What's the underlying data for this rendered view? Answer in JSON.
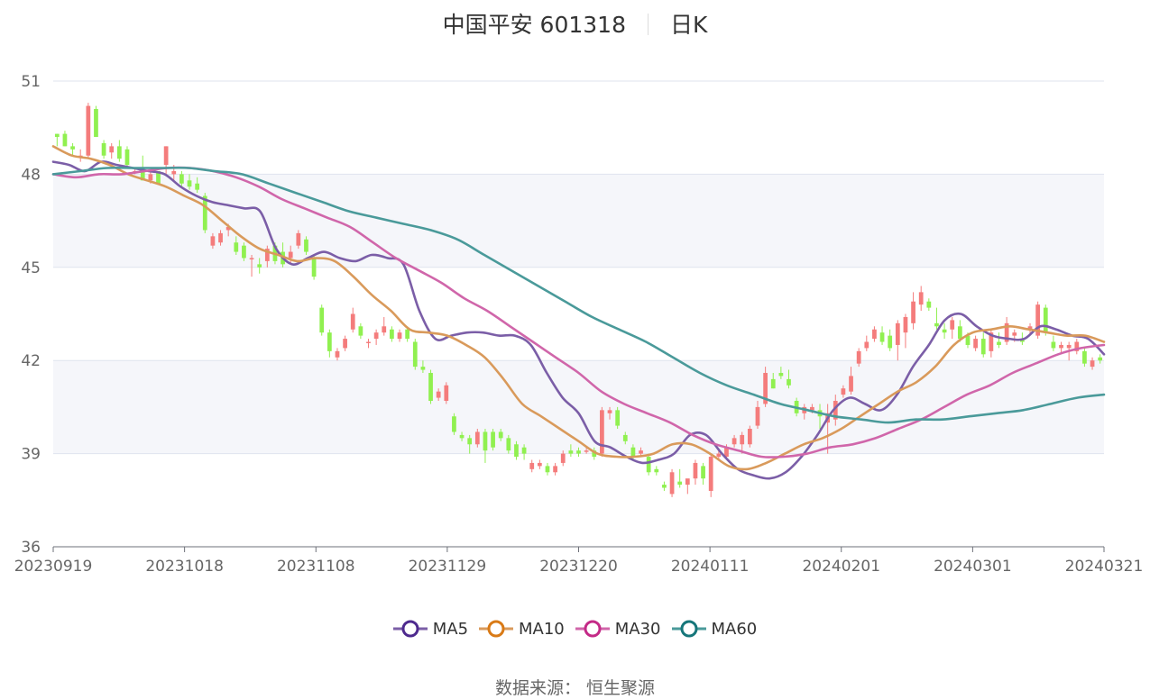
{
  "chart_data": {
    "type": "candlestick",
    "title": "中国平安 601318",
    "period": "日K",
    "ylim": [
      36,
      51
    ],
    "yticks": [
      36,
      39,
      42,
      45,
      48,
      51
    ],
    "xticks": [
      "20230919",
      "20231018",
      "20231108",
      "20231129",
      "20231220",
      "20240111",
      "20240201",
      "20240301",
      "20240321"
    ],
    "up_color": "#f47c7c",
    "down_color": "#90f050",
    "ohlc": [
      [
        49.3,
        49.3,
        48.9,
        49.2
      ],
      [
        49.3,
        49.4,
        48.9,
        48.9
      ],
      [
        48.9,
        49.0,
        48.6,
        48.8
      ],
      [
        48.6,
        48.8,
        48.4,
        48.6
      ],
      [
        48.6,
        50.3,
        48.5,
        50.2
      ],
      [
        50.1,
        50.2,
        49.2,
        49.2
      ],
      [
        49.0,
        49.1,
        48.5,
        48.6
      ],
      [
        48.7,
        49.0,
        48.5,
        48.9
      ],
      [
        48.9,
        49.1,
        48.4,
        48.5
      ],
      [
        48.8,
        48.9,
        48.2,
        48.3
      ],
      [
        48.1,
        48.2,
        48.0,
        48.1
      ],
      [
        48.2,
        48.6,
        47.8,
        47.8
      ],
      [
        47.8,
        48.1,
        47.7,
        48.0
      ],
      [
        48.1,
        48.1,
        47.7,
        47.7
      ],
      [
        48.3,
        48.9,
        48.0,
        48.9
      ],
      [
        48.0,
        48.3,
        47.8,
        48.1
      ],
      [
        48.0,
        48.1,
        47.6,
        47.7
      ],
      [
        47.8,
        48.0,
        47.5,
        47.6
      ],
      [
        47.7,
        47.9,
        47.4,
        47.5
      ],
      [
        47.3,
        47.4,
        46.1,
        46.2
      ],
      [
        45.7,
        46.1,
        45.6,
        46.0
      ],
      [
        45.8,
        46.2,
        45.7,
        46.1
      ],
      [
        46.2,
        46.4,
        46.0,
        46.3
      ],
      [
        45.8,
        46.0,
        45.4,
        45.5
      ],
      [
        45.7,
        45.8,
        45.2,
        45.3
      ],
      [
        45.3,
        45.4,
        44.7,
        45.3
      ],
      [
        45.1,
        45.3,
        44.8,
        45.0
      ],
      [
        45.2,
        45.7,
        45.0,
        45.6
      ],
      [
        45.7,
        45.8,
        45.1,
        45.2
      ],
      [
        45.5,
        45.8,
        45.0,
        45.1
      ],
      [
        45.3,
        45.7,
        45.1,
        45.5
      ],
      [
        45.7,
        46.2,
        45.6,
        46.1
      ],
      [
        45.9,
        46.0,
        45.4,
        45.5
      ],
      [
        45.3,
        45.4,
        44.6,
        44.7
      ],
      [
        43.7,
        43.8,
        42.8,
        42.9
      ],
      [
        42.9,
        43.0,
        42.1,
        42.3
      ],
      [
        42.1,
        42.4,
        42.0,
        42.3
      ],
      [
        42.4,
        42.8,
        42.3,
        42.7
      ],
      [
        43.0,
        43.7,
        42.9,
        43.5
      ],
      [
        43.1,
        43.2,
        42.7,
        42.8
      ],
      [
        42.6,
        42.7,
        42.4,
        42.6
      ],
      [
        42.7,
        43.0,
        42.5,
        42.9
      ],
      [
        42.9,
        43.4,
        42.8,
        43.1
      ],
      [
        43.0,
        43.1,
        42.6,
        42.7
      ],
      [
        42.7,
        43.0,
        42.6,
        42.9
      ],
      [
        43.0,
        43.1,
        42.6,
        42.7
      ],
      [
        42.6,
        42.7,
        41.7,
        41.8
      ],
      [
        41.8,
        42.0,
        41.6,
        41.7
      ],
      [
        41.6,
        41.7,
        40.6,
        40.7
      ],
      [
        40.8,
        41.1,
        40.7,
        41.0
      ],
      [
        40.7,
        41.3,
        40.6,
        41.2
      ],
      [
        40.2,
        40.3,
        39.6,
        39.7
      ],
      [
        39.6,
        39.7,
        39.4,
        39.5
      ],
      [
        39.5,
        39.6,
        39.0,
        39.3
      ],
      [
        39.3,
        39.8,
        39.2,
        39.7
      ],
      [
        39.7,
        39.8,
        38.7,
        39.1
      ],
      [
        39.7,
        39.8,
        39.1,
        39.2
      ],
      [
        39.7,
        39.8,
        39.4,
        39.5
      ],
      [
        39.5,
        39.6,
        39.0,
        39.1
      ],
      [
        39.3,
        39.4,
        38.8,
        38.9
      ],
      [
        39.2,
        39.3,
        38.8,
        39.0
      ],
      [
        38.5,
        38.8,
        38.4,
        38.7
      ],
      [
        38.6,
        38.8,
        38.5,
        38.7
      ],
      [
        38.6,
        38.7,
        38.3,
        38.4
      ],
      [
        38.4,
        38.7,
        38.3,
        38.6
      ],
      [
        38.7,
        39.1,
        38.6,
        39.0
      ],
      [
        39.1,
        39.3,
        38.9,
        39.0
      ],
      [
        39.1,
        39.2,
        38.9,
        39.0
      ],
      [
        39.1,
        39.2,
        39.0,
        39.1
      ],
      [
        39.1,
        39.2,
        38.8,
        38.9
      ],
      [
        39.0,
        40.5,
        38.9,
        40.4
      ],
      [
        40.3,
        40.5,
        40.1,
        40.4
      ],
      [
        40.4,
        40.5,
        39.8,
        39.9
      ],
      [
        39.6,
        39.7,
        39.3,
        39.4
      ],
      [
        39.2,
        39.3,
        38.8,
        38.9
      ],
      [
        39.0,
        39.2,
        38.9,
        39.1
      ],
      [
        38.9,
        39.0,
        38.3,
        38.4
      ],
      [
        38.5,
        38.6,
        38.3,
        38.4
      ],
      [
        38.0,
        38.1,
        37.8,
        37.9
      ],
      [
        37.7,
        38.5,
        37.6,
        38.4
      ],
      [
        38.1,
        38.5,
        37.9,
        38.0
      ],
      [
        38.0,
        38.1,
        37.7,
        38.2
      ],
      [
        38.2,
        38.8,
        38.0,
        38.7
      ],
      [
        38.6,
        38.7,
        38.0,
        38.2
      ],
      [
        37.8,
        39.0,
        37.6,
        38.9
      ],
      [
        38.9,
        39.1,
        38.8,
        39.0
      ],
      [
        38.9,
        39.3,
        38.8,
        39.2
      ],
      [
        39.3,
        39.6,
        39.2,
        39.5
      ],
      [
        39.3,
        39.7,
        39.0,
        39.6
      ],
      [
        39.3,
        39.9,
        39.2,
        39.8
      ],
      [
        39.9,
        40.7,
        39.8,
        40.5
      ],
      [
        40.6,
        41.8,
        40.5,
        41.6
      ],
      [
        41.4,
        41.6,
        41.1,
        41.1
      ],
      [
        41.6,
        41.8,
        41.4,
        41.5
      ],
      [
        41.4,
        41.7,
        41.1,
        41.2
      ],
      [
        40.7,
        40.8,
        40.2,
        40.3
      ],
      [
        40.3,
        40.6,
        40.1,
        40.5
      ],
      [
        40.4,
        40.6,
        40.3,
        40.5
      ],
      [
        40.4,
        40.6,
        39.8,
        40.2
      ],
      [
        40.0,
        40.6,
        39.0,
        40.3
      ],
      [
        40.1,
        40.9,
        39.9,
        40.7
      ],
      [
        40.9,
        41.2,
        40.8,
        41.1
      ],
      [
        41.0,
        41.8,
        40.9,
        41.5
      ],
      [
        41.9,
        42.4,
        41.8,
        42.3
      ],
      [
        42.4,
        42.8,
        42.3,
        42.6
      ],
      [
        42.7,
        43.1,
        42.6,
        43.0
      ],
      [
        42.9,
        43.1,
        42.5,
        42.6
      ],
      [
        42.8,
        43.0,
        42.3,
        42.4
      ],
      [
        42.5,
        43.3,
        42.0,
        43.2
      ],
      [
        42.9,
        43.5,
        42.4,
        43.4
      ],
      [
        43.2,
        44.2,
        43.0,
        43.9
      ],
      [
        43.8,
        44.4,
        43.6,
        44.2
      ],
      [
        43.9,
        44.0,
        43.6,
        43.7
      ],
      [
        43.2,
        43.7,
        43.0,
        43.1
      ],
      [
        43.0,
        43.2,
        42.7,
        42.9
      ],
      [
        43.0,
        43.4,
        42.7,
        43.3
      ],
      [
        43.1,
        43.3,
        42.6,
        42.7
      ],
      [
        42.8,
        42.9,
        42.4,
        42.5
      ],
      [
        42.4,
        42.8,
        42.3,
        42.7
      ],
      [
        42.7,
        42.9,
        42.1,
        42.2
      ],
      [
        42.3,
        43.0,
        42.1,
        42.9
      ],
      [
        42.6,
        42.9,
        42.4,
        42.5
      ],
      [
        42.6,
        43.4,
        42.5,
        43.2
      ],
      [
        42.8,
        43.0,
        42.6,
        42.9
      ],
      [
        42.7,
        42.9,
        42.5,
        42.6
      ],
      [
        43.0,
        43.2,
        42.8,
        43.1
      ],
      [
        42.8,
        43.9,
        42.7,
        43.8
      ],
      [
        43.7,
        43.8,
        42.8,
        42.9
      ],
      [
        42.6,
        42.8,
        42.3,
        42.4
      ],
      [
        42.4,
        42.6,
        42.2,
        42.5
      ],
      [
        42.4,
        42.6,
        42.0,
        42.5
      ],
      [
        42.3,
        42.7,
        42.2,
        42.6
      ],
      [
        42.3,
        42.4,
        41.8,
        41.9
      ],
      [
        41.8,
        42.1,
        41.7,
        42.0
      ],
      [
        42.1,
        42.2,
        41.9,
        42.0
      ]
    ],
    "ma": [
      {
        "name": "MA5",
        "color": "#7b5ea7",
        "values": [
          48.4,
          48.3,
          48.1,
          48.4,
          48.3,
          48.2,
          48.1,
          48.0,
          47.6,
          47.3,
          47.1,
          47.0,
          46.9,
          46.8,
          45.6,
          45.1,
          45.3,
          45.5,
          45.3,
          45.2,
          45.4,
          45.3,
          45.1,
          43.6,
          42.7,
          42.8,
          42.9,
          42.9,
          42.8,
          42.8,
          42.5,
          41.6,
          40.8,
          40.3,
          39.4,
          39.2,
          38.9,
          38.7,
          38.8,
          39.0,
          39.6,
          39.6,
          39.0,
          38.5,
          38.3,
          38.2,
          38.4,
          38.9,
          39.6,
          40.4,
          40.8,
          40.6,
          40.4,
          40.9,
          41.8,
          42.5,
          43.3,
          43.5,
          43.1,
          42.8,
          42.7,
          42.7,
          43.1,
          43.0,
          42.8,
          42.7,
          42.2
        ]
      },
      {
        "name": "MA10",
        "color": "#d99a5b",
        "values": [
          48.9,
          48.6,
          48.5,
          48.3,
          48.0,
          47.8,
          47.6,
          47.3,
          47.0,
          46.5,
          46.0,
          45.6,
          45.4,
          45.2,
          45.3,
          45.2,
          44.7,
          44.1,
          43.6,
          43.0,
          42.9,
          42.8,
          42.5,
          42.1,
          41.4,
          40.6,
          40.2,
          39.8,
          39.4,
          39.0,
          38.9,
          38.9,
          39.0,
          39.3,
          39.3,
          39.0,
          38.6,
          38.5,
          38.7,
          39.0,
          39.3,
          39.5,
          39.8,
          40.2,
          40.6,
          41.0,
          41.3,
          41.8,
          42.5,
          42.9,
          43.0,
          43.1,
          43.0,
          42.9,
          42.8,
          42.8,
          42.6
        ]
      },
      {
        "name": "MA30",
        "color": "#d066aa",
        "values": [
          48.0,
          47.9,
          48.0,
          48.0,
          48.1,
          48.2,
          48.2,
          48.1,
          47.9,
          47.6,
          47.2,
          46.9,
          46.6,
          46.3,
          45.8,
          45.3,
          44.9,
          44.5,
          44.0,
          43.6,
          43.1,
          42.6,
          42.1,
          41.6,
          41.0,
          40.6,
          40.3,
          40.0,
          39.6,
          39.3,
          39.1,
          38.9,
          38.9,
          39.0,
          39.2,
          39.3,
          39.5,
          39.8,
          40.1,
          40.5,
          40.9,
          41.2,
          41.6,
          41.9,
          42.2,
          42.4,
          42.5
        ]
      },
      {
        "name": "MA60",
        "color": "#4a9a9a",
        "values": [
          48.0,
          48.1,
          48.2,
          48.2,
          48.2,
          48.2,
          48.1,
          48.0,
          47.7,
          47.4,
          47.1,
          46.8,
          46.6,
          46.4,
          46.2,
          45.9,
          45.4,
          44.9,
          44.4,
          43.9,
          43.4,
          43.0,
          42.6,
          42.1,
          41.6,
          41.2,
          40.9,
          40.6,
          40.4,
          40.2,
          40.1,
          40.0,
          40.1,
          40.1,
          40.2,
          40.3,
          40.4,
          40.6,
          40.8,
          40.9
        ]
      }
    ]
  },
  "legend": [
    {
      "label": "MA5",
      "color": "#7b5ea7",
      "ring": "#4e2a8e"
    },
    {
      "label": "MA10",
      "color": "#d99a5b",
      "ring": "#d97a16"
    },
    {
      "label": "MA30",
      "color": "#d066aa",
      "ring": "#c42a87"
    },
    {
      "label": "MA60",
      "color": "#4a9a9a",
      "ring": "#16767a"
    }
  ],
  "source": "数据来源： 恒生聚源"
}
